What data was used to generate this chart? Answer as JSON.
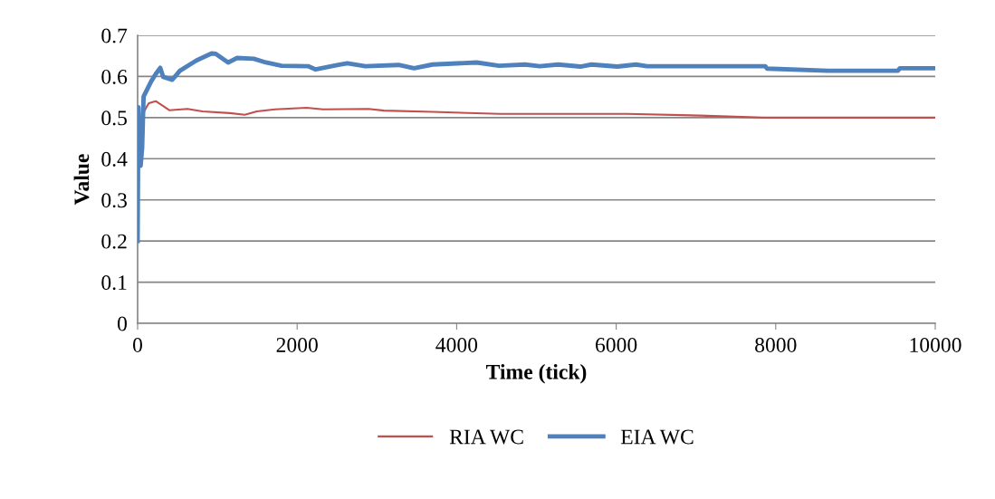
{
  "chart_data": {
    "type": "line",
    "xlabel": "Time (tick)",
    "ylabel": "Value",
    "xlim": [
      0,
      10000
    ],
    "xticks": [
      0,
      2000,
      4000,
      6000,
      8000,
      10000
    ],
    "ylim": [
      0,
      0.7
    ],
    "yticks": [
      0,
      0.1,
      0.2,
      0.3,
      0.4,
      0.5,
      0.6,
      0.7
    ],
    "grid": "y",
    "legend": "bottom",
    "marker": "none",
    "line_style": "solid",
    "series": [
      {
        "name": "RIA WC",
        "color": "#c0504d",
        "x": [
          40,
          113,
          140,
          227,
          321,
          397,
          624,
          813,
          1153,
          1343,
          1494,
          1721,
          2118,
          2326,
          2894,
          3090,
          3697,
          4544,
          6140,
          7050,
          7840,
          10000
        ],
        "values": [
          0.5,
          0.526,
          0.535,
          0.54,
          0.528,
          0.518,
          0.521,
          0.515,
          0.511,
          0.507,
          0.515,
          0.52,
          0.524,
          0.52,
          0.521,
          0.517,
          0.514,
          0.509,
          0.509,
          0.505,
          0.5,
          0.5
        ]
      },
      {
        "name": "EIA WC",
        "color": "#4f81bd",
        "x": [
          0,
          10,
          20,
          38,
          57,
          75,
          113,
          170,
          227,
          284,
          321,
          435,
          530,
          738,
          927,
          980,
          1135,
          1248,
          1456,
          1608,
          1805,
          2137,
          2232,
          2516,
          2629,
          2856,
          3272,
          3466,
          3697,
          4251,
          4532,
          4857,
          5043,
          5272,
          5550,
          5690,
          6015,
          6247,
          6386,
          7868,
          7892,
          8654,
          9533,
          9557,
          10000
        ],
        "values": [
          0.2,
          0.525,
          0.45,
          0.383,
          0.427,
          0.551,
          0.566,
          0.588,
          0.606,
          0.621,
          0.599,
          0.592,
          0.614,
          0.639,
          0.656,
          0.655,
          0.634,
          0.645,
          0.643,
          0.634,
          0.626,
          0.625,
          0.617,
          0.628,
          0.632,
          0.625,
          0.628,
          0.62,
          0.629,
          0.634,
          0.626,
          0.629,
          0.625,
          0.629,
          0.624,
          0.629,
          0.624,
          0.629,
          0.625,
          0.625,
          0.619,
          0.614,
          0.614,
          0.62,
          0.62
        ]
      }
    ]
  }
}
